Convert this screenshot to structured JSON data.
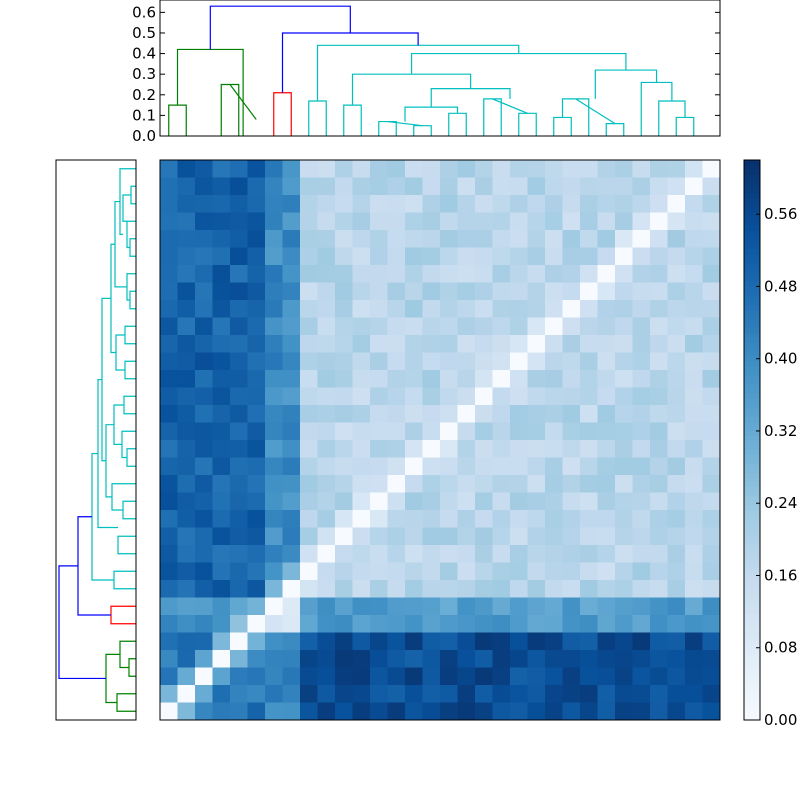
{
  "chart_data": {
    "type": "heatmap",
    "title": "",
    "n": 32,
    "colormap": "Blues",
    "vmin": 0.0,
    "vmax": 0.62,
    "colorbar": {
      "ticks": [
        0.0,
        0.08,
        0.16,
        0.24,
        0.32,
        0.4,
        0.48,
        0.56
      ],
      "tick_labels": [
        "0.00",
        "0.08",
        "0.16",
        "0.24",
        "0.32",
        "0.40",
        "0.48",
        "0.56"
      ]
    },
    "top_dendrogram": {
      "y_axis": {
        "ylim": [
          0,
          0.66
        ],
        "ticks": [
          0.0,
          0.1,
          0.2,
          0.3,
          0.4,
          0.5,
          0.6
        ],
        "tick_labels": [
          "0.0",
          "0.1",
          "0.2",
          "0.3",
          "0.4",
          "0.5",
          "0.6"
        ]
      },
      "links": [
        {
          "c": "g",
          "a": [
            0,
            1
          ],
          "h": [
            0.0,
            0.15,
            0.15,
            0.0
          ]
        },
        {
          "c": "g",
          "a": [
            3,
            4
          ],
          "h": [
            0.0,
            0.25,
            0.25,
            0.0
          ]
        },
        {
          "c": "g",
          "a": [
            3.5,
            5
          ],
          "h": [
            0.25,
            0.25,
            0.08,
            0.08
          ]
        },
        {
          "c": "g",
          "a": [
            0.5,
            4.25
          ],
          "h": [
            0.15,
            0.42,
            0.42,
            0.0
          ]
        },
        {
          "c": "r",
          "a": [
            6,
            7
          ],
          "h": [
            0.0,
            0.21,
            0.21,
            0.0
          ]
        },
        {
          "c": "c",
          "a": [
            8,
            9
          ],
          "h": [
            0.0,
            0.17,
            0.17,
            0.0
          ]
        },
        {
          "c": "c",
          "a": [
            10,
            11
          ],
          "h": [
            0.0,
            0.15,
            0.15,
            0.0
          ]
        },
        {
          "c": "c",
          "a": [
            12,
            13
          ],
          "h": [
            0.0,
            0.07,
            0.07,
            0.0
          ]
        },
        {
          "c": "c",
          "a": [
            14,
            15
          ],
          "h": [
            0.0,
            0.05,
            0.05,
            0.0
          ]
        },
        {
          "c": "c",
          "a": [
            12.5,
            14.5
          ],
          "h": [
            0.07,
            0.07,
            0.05,
            0.05
          ]
        },
        {
          "c": "c",
          "a": [
            16,
            17
          ],
          "h": [
            0.0,
            0.11,
            0.11,
            0.0
          ]
        },
        {
          "c": "c",
          "a": [
            13.5,
            16.5
          ],
          "h": [
            0.07,
            0.14,
            0.14,
            0.11
          ]
        },
        {
          "c": "c",
          "a": [
            18,
            19
          ],
          "h": [
            0.0,
            0.18,
            0.18,
            0.0
          ]
        },
        {
          "c": "c",
          "a": [
            20,
            21
          ],
          "h": [
            0.0,
            0.11,
            0.11,
            0.0
          ]
        },
        {
          "c": "c",
          "a": [
            18.5,
            20.5
          ],
          "h": [
            0.18,
            0.18,
            0.11,
            0.11
          ]
        },
        {
          "c": "c",
          "a": [
            15,
            19.5
          ],
          "h": [
            0.14,
            0.23,
            0.23,
            0.18
          ]
        },
        {
          "c": "c",
          "a": [
            10.5,
            17.25
          ],
          "h": [
            0.15,
            0.3,
            0.3,
            0.23
          ]
        },
        {
          "c": "c",
          "a": [
            22,
            23
          ],
          "h": [
            0.0,
            0.09,
            0.09,
            0.0
          ]
        },
        {
          "c": "c",
          "a": [
            22.5,
            24
          ],
          "h": [
            0.09,
            0.18,
            0.18,
            0.0
          ]
        },
        {
          "c": "c",
          "a": [
            25,
            26
          ],
          "h": [
            0.0,
            0.06,
            0.06,
            0.0
          ]
        },
        {
          "c": "c",
          "a": [
            23.25,
            25.5
          ],
          "h": [
            0.18,
            0.18,
            0.06,
            0.06
          ]
        },
        {
          "c": "c",
          "a": [
            29,
            30
          ],
          "h": [
            0.0,
            0.09,
            0.09,
            0.0
          ]
        },
        {
          "c": "c",
          "a": [
            28,
            29.5
          ],
          "h": [
            0.0,
            0.17,
            0.17,
            0.09
          ]
        },
        {
          "c": "c",
          "a": [
            27,
            28.75
          ],
          "h": [
            0.0,
            0.26,
            0.26,
            0.17
          ]
        },
        {
          "c": "c",
          "a": [
            24.375,
            27.875
          ],
          "h": [
            0.18,
            0.32,
            0.32,
            0.26
          ]
        },
        {
          "c": "c",
          "a": [
            13.875,
            26.125
          ],
          "h": [
            0.3,
            0.4,
            0.4,
            0.32
          ]
        },
        {
          "c": "c",
          "a": [
            8.5,
            20
          ],
          "h": [
            0.17,
            0.44,
            0.44,
            0.4
          ]
        },
        {
          "c": "b",
          "a": [
            6.5,
            14.25
          ],
          "h": [
            0.21,
            0.5,
            0.5,
            0.44
          ]
        },
        {
          "c": "b",
          "a": [
            2.375,
            10.375
          ],
          "h": [
            0.42,
            0.63,
            0.63,
            0.5
          ]
        }
      ]
    },
    "left_dendrogram": {
      "links": [
        {
          "c": "g",
          "a": [
            0,
            1
          ],
          "h": [
            0.0,
            0.19,
            0.19,
            0.0
          ]
        },
        {
          "c": "g",
          "a": [
            2,
            3
          ],
          "h": [
            0.0,
            0.07,
            0.07,
            0.0
          ]
        },
        {
          "c": "g",
          "a": [
            2.5,
            4
          ],
          "h": [
            0.07,
            0.16,
            0.16,
            0.0
          ]
        },
        {
          "c": "g",
          "a": [
            0.5,
            3.25
          ],
          "h": [
            0.19,
            0.3,
            0.3,
            0.16
          ]
        },
        {
          "c": "r",
          "a": [
            5,
            6
          ],
          "h": [
            0.0,
            0.25,
            0.25,
            0.0
          ]
        },
        {
          "c": "c",
          "a": [
            7,
            8
          ],
          "h": [
            0.0,
            0.22,
            0.22,
            0.0
          ]
        },
        {
          "c": "c",
          "a": [
            9,
            10
          ],
          "h": [
            0.0,
            0.18,
            0.18,
            0.0
          ]
        },
        {
          "c": "c",
          "a": [
            11,
            12
          ],
          "h": [
            0.0,
            0.13,
            0.13,
            0.0
          ]
        },
        {
          "c": "c",
          "a": [
            11.5,
            13
          ],
          "h": [
            0.13,
            0.24,
            0.24,
            0.0
          ]
        },
        {
          "c": "c",
          "a": [
            14,
            15
          ],
          "h": [
            0.0,
            0.09,
            0.09,
            0.0
          ]
        },
        {
          "c": "c",
          "a": [
            14.5,
            16
          ],
          "h": [
            0.09,
            0.14,
            0.14,
            0.0
          ]
        },
        {
          "c": "c",
          "a": [
            17,
            18
          ],
          "h": [
            0.0,
            0.12,
            0.12,
            0.0
          ]
        },
        {
          "c": "c",
          "a": [
            15.25,
            17.5
          ],
          "h": [
            0.14,
            0.22,
            0.22,
            0.12
          ]
        },
        {
          "c": "c",
          "a": [
            12.25,
            16.375
          ],
          "h": [
            0.24,
            0.3,
            0.3,
            0.22
          ]
        },
        {
          "c": "c",
          "a": [
            19,
            20
          ],
          "h": [
            0.0,
            0.11,
            0.11,
            0.0
          ]
        },
        {
          "c": "c",
          "a": [
            21,
            22
          ],
          "h": [
            0.0,
            0.11,
            0.11,
            0.0
          ]
        },
        {
          "c": "c",
          "a": [
            19.5,
            21.5
          ],
          "h": [
            0.11,
            0.2,
            0.2,
            0.11
          ]
        },
        {
          "c": "c",
          "a": [
            23,
            24
          ],
          "h": [
            0.0,
            0.06,
            0.06,
            0.0
          ]
        },
        {
          "c": "c",
          "a": [
            23.5,
            25
          ],
          "h": [
            0.06,
            0.09,
            0.09,
            0.0
          ]
        },
        {
          "c": "c",
          "a": [
            26,
            27
          ],
          "h": [
            0.0,
            0.06,
            0.06,
            0.0
          ]
        },
        {
          "c": "c",
          "a": [
            26.5,
            28
          ],
          "h": [
            0.06,
            0.09,
            0.09,
            0.0
          ]
        },
        {
          "c": "c",
          "a": [
            29,
            30
          ],
          "h": [
            0.0,
            0.05,
            0.05,
            0.0
          ]
        },
        {
          "c": "c",
          "a": [
            28,
            29.5
          ],
          "h": [
            0.09,
            0.13,
            0.13,
            0.05
          ]
        },
        {
          "c": "c",
          "a": [
            27.25,
            31
          ],
          "h": [
            0.13,
            0.16,
            0.16,
            0.0
          ]
        },
        {
          "c": "c",
          "a": [
            24.25,
            29.125
          ],
          "h": [
            0.09,
            0.21,
            0.21,
            0.16
          ]
        },
        {
          "c": "c",
          "a": [
            20.5,
            26.6875
          ],
          "h": [
            0.2,
            0.25,
            0.25,
            0.21
          ]
        },
        {
          "c": "c",
          "a": [
            14.3125,
            23.59375
          ],
          "h": [
            0.3,
            0.34,
            0.34,
            0.25
          ]
        },
        {
          "c": "c",
          "a": [
            10.5,
            18.953125
          ],
          "h": [
            0.18,
            0.38,
            0.38,
            0.34
          ]
        },
        {
          "c": "c",
          "a": [
            7.5,
            14.7265625
          ],
          "h": [
            0.22,
            0.44,
            0.44,
            0.38
          ]
        },
        {
          "c": "b",
          "a": [
            5.5,
            11.11328125
          ],
          "h": [
            0.25,
            0.58,
            0.58,
            0.44
          ]
        },
        {
          "c": "b",
          "a": [
            1.875,
            8.306640625
          ],
          "h": [
            0.3,
            0.77,
            0.77,
            0.58
          ]
        }
      ]
    },
    "colors": {
      "g": "#008000",
      "r": "#ff0000",
      "c": "#00bfbf",
      "b": "#0000ff"
    }
  }
}
